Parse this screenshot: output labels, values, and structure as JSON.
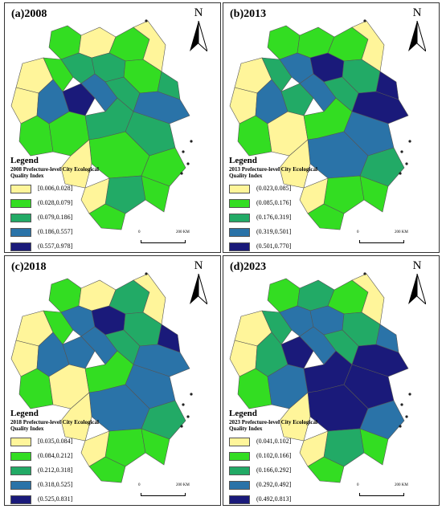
{
  "panels": [
    {
      "label": "(a)2008",
      "legend_title": "Legend",
      "legend_subtitle": "2008 Prefecture-level City Ecological Quality Index",
      "classes": [
        "[0.006,0.028]",
        "(0.028,0.079]",
        "(0.079,0.186]",
        "(0.186,0.557]",
        "(0.557,0.978]"
      ]
    },
    {
      "label": "(b)2013",
      "legend_title": "Legend",
      "legend_subtitle": "2013 Prefecture-level City Ecological Quality Index",
      "classes": [
        "(0.023,0.085]",
        "(0.085,0.176]",
        "(0.176,0.319]",
        "(0.319,0.501]",
        "(0.501,0.770]"
      ]
    },
    {
      "label": "(c)2018",
      "legend_title": "Legend",
      "legend_subtitle": "2018 Prefecture-level City Ecological Quality Index",
      "classes": [
        "[0.035,0.084]",
        "(0.084,0.212]",
        "(0.212,0.318]",
        "(0.318,0.525]",
        "(0.525,0.831]"
      ]
    },
    {
      "label": "(d)2023",
      "legend_title": "Legend",
      "legend_subtitle": "2023 Prefecture-level City Ecological Quality Index",
      "classes": [
        "(0.041,0.102]",
        "(0.102,0.166]",
        "(0.166,0.292]",
        "(0.292,0.492]",
        "(0.492,0.813]"
      ]
    }
  ],
  "north_label": "N",
  "scale": {
    "start": "0",
    "end": "200 KM"
  },
  "class_colors": [
    "#fff59a",
    "#33dd22",
    "#22aa66",
    "#2a73a8",
    "#1a1a7a"
  ]
}
